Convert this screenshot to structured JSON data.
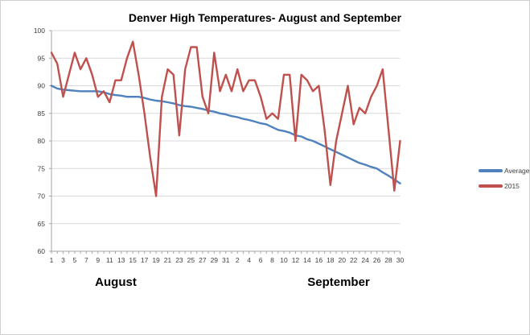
{
  "window": {
    "background": "#ffffff",
    "border_color": "#d0d0d0"
  },
  "chart_data": {
    "type": "line",
    "title": "Denver High Temperatures- August and September",
    "xlabel": "",
    "ylabel": "",
    "ylim": [
      60,
      100
    ],
    "ytick_step": 5,
    "ytick_labels": [
      "60",
      "65",
      "70",
      "75",
      "80",
      "85",
      "90",
      "95",
      "100"
    ],
    "grid": "horizontal-only",
    "gridline_color": "#d9d9d9",
    "axis_color": "#a6a6a6",
    "tick_label_color": "#404040",
    "legend_position": "right",
    "x_groups": [
      {
        "label": "August",
        "day_count": 31,
        "shown_tick_labels": [
          "1",
          "3",
          "5",
          "7",
          "9",
          "11",
          "13",
          "15",
          "17",
          "19",
          "21",
          "23",
          "25",
          "27",
          "29",
          "31"
        ]
      },
      {
        "label": "September",
        "day_count": 30,
        "shown_tick_labels": [
          "2",
          "4",
          "6",
          "8",
          "10",
          "12",
          "14",
          "16",
          "18",
          "20",
          "22",
          "24",
          "26",
          "28",
          "30"
        ]
      }
    ],
    "x_label_rule": "every second point starting at first August day",
    "series": [
      {
        "name": "Average",
        "color": "#4f81bd",
        "values": [
          90,
          89.5,
          89.3,
          89.2,
          89.1,
          89,
          89,
          89,
          89,
          88.8,
          88.5,
          88.3,
          88.2,
          88,
          88,
          88,
          87.8,
          87.5,
          87.3,
          87.2,
          87,
          86.8,
          86.5,
          86.3,
          86.2,
          86,
          85.8,
          85.5,
          85.3,
          85,
          84.8,
          84.5,
          84.3,
          84,
          83.8,
          83.5,
          83.2,
          83,
          82.5,
          82,
          81.8,
          81.5,
          81,
          80.8,
          80.3,
          80,
          79.5,
          79,
          78.5,
          78,
          77.5,
          77,
          76.5,
          76,
          75.7,
          75.3,
          75,
          74.3,
          73.7,
          73,
          72.3
        ]
      },
      {
        "name": "2015",
        "color": "#c0504d",
        "values": [
          96,
          94,
          88,
          92,
          96,
          93,
          95,
          92,
          88,
          89,
          87,
          91,
          91,
          95,
          98,
          92,
          85,
          77,
          70,
          88,
          93,
          92,
          81,
          93,
          97,
          97,
          88,
          85,
          96,
          89,
          92,
          89,
          93,
          89,
          91,
          91,
          88,
          84,
          85,
          84,
          92,
          92,
          80,
          92,
          91,
          89,
          90,
          82,
          72,
          80,
          85,
          90,
          83,
          86,
          85,
          88,
          90,
          93,
          82,
          71,
          80
        ]
      }
    ]
  }
}
